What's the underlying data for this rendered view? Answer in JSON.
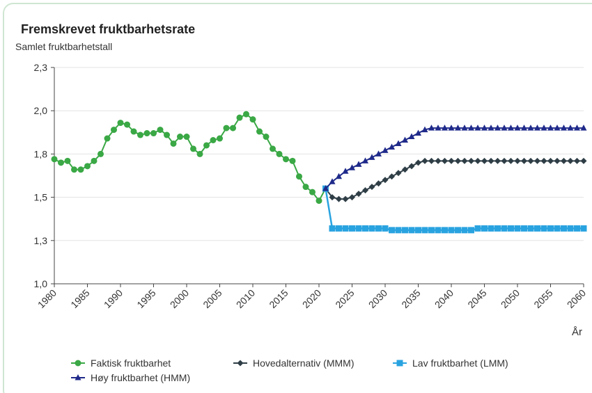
{
  "chart_data": {
    "type": "line",
    "title": "Fremskrevet fruktbarhetsrate",
    "subtitle": "Samlet fruktbarhetstall",
    "x_label": "År",
    "xlim": [
      1980,
      2060
    ],
    "xticks": [
      1980,
      1985,
      1990,
      1995,
      2000,
      2005,
      2010,
      2015,
      2020,
      2025,
      2030,
      2035,
      2040,
      2045,
      2050,
      2055,
      2060
    ],
    "ylim": [
      1.0,
      2.25
    ],
    "yticks": [
      {
        "value": 1.0,
        "label": "1,0"
      },
      {
        "value": 1.25,
        "label": "1,3"
      },
      {
        "value": 1.5,
        "label": "1,5"
      },
      {
        "value": 1.75,
        "label": "1,8"
      },
      {
        "value": 2.0,
        "label": "2,0"
      },
      {
        "value": 2.25,
        "label": "2,3"
      }
    ],
    "grid": true,
    "legend": "bottom",
    "series": [
      {
        "name": "Faktisk fruktbarhet",
        "color": "#3aa845",
        "marker": "circle",
        "x": [
          1980,
          1981,
          1982,
          1983,
          1984,
          1985,
          1986,
          1987,
          1988,
          1989,
          1990,
          1991,
          1992,
          1993,
          1994,
          1995,
          1996,
          1997,
          1998,
          1999,
          2000,
          2001,
          2002,
          2003,
          2004,
          2005,
          2006,
          2007,
          2008,
          2009,
          2010,
          2011,
          2012,
          2013,
          2014,
          2015,
          2016,
          2017,
          2018,
          2019,
          2020,
          2021
        ],
        "values": [
          1.72,
          1.7,
          1.71,
          1.66,
          1.66,
          1.68,
          1.71,
          1.75,
          1.84,
          1.89,
          1.93,
          1.92,
          1.88,
          1.86,
          1.87,
          1.87,
          1.89,
          1.86,
          1.81,
          1.85,
          1.85,
          1.78,
          1.75,
          1.8,
          1.83,
          1.84,
          1.9,
          1.9,
          1.96,
          1.98,
          1.95,
          1.88,
          1.85,
          1.78,
          1.75,
          1.72,
          1.71,
          1.62,
          1.56,
          1.53,
          1.48,
          1.55
        ]
      },
      {
        "name": "Hovedalternativ (MMM)",
        "color": "#2f3e46",
        "marker": "diamond",
        "x": [
          2021,
          2022,
          2023,
          2024,
          2025,
          2026,
          2027,
          2028,
          2029,
          2030,
          2031,
          2032,
          2033,
          2034,
          2035,
          2036,
          2037,
          2038,
          2039,
          2040,
          2041,
          2042,
          2043,
          2044,
          2045,
          2046,
          2047,
          2048,
          2049,
          2050,
          2051,
          2052,
          2053,
          2054,
          2055,
          2056,
          2057,
          2058,
          2059,
          2060
        ],
        "values": [
          1.55,
          1.5,
          1.49,
          1.49,
          1.5,
          1.52,
          1.54,
          1.56,
          1.58,
          1.6,
          1.62,
          1.64,
          1.66,
          1.68,
          1.7,
          1.71,
          1.71,
          1.71,
          1.71,
          1.71,
          1.71,
          1.71,
          1.71,
          1.71,
          1.71,
          1.71,
          1.71,
          1.71,
          1.71,
          1.71,
          1.71,
          1.71,
          1.71,
          1.71,
          1.71,
          1.71,
          1.71,
          1.71,
          1.71,
          1.71
        ]
      },
      {
        "name": "Lav fruktbarhet (LMM)",
        "color": "#29a3e0",
        "marker": "square",
        "x": [
          2021,
          2022,
          2023,
          2024,
          2025,
          2026,
          2027,
          2028,
          2029,
          2030,
          2031,
          2032,
          2033,
          2034,
          2035,
          2036,
          2037,
          2038,
          2039,
          2040,
          2041,
          2042,
          2043,
          2044,
          2045,
          2046,
          2047,
          2048,
          2049,
          2050,
          2051,
          2052,
          2053,
          2054,
          2055,
          2056,
          2057,
          2058,
          2059,
          2060
        ],
        "values": [
          1.55,
          1.32,
          1.32,
          1.32,
          1.32,
          1.32,
          1.32,
          1.32,
          1.32,
          1.32,
          1.31,
          1.31,
          1.31,
          1.31,
          1.31,
          1.31,
          1.31,
          1.31,
          1.31,
          1.31,
          1.31,
          1.31,
          1.31,
          1.32,
          1.32,
          1.32,
          1.32,
          1.32,
          1.32,
          1.32,
          1.32,
          1.32,
          1.32,
          1.32,
          1.32,
          1.32,
          1.32,
          1.32,
          1.32,
          1.32
        ]
      },
      {
        "name": "Høy fruktbarhet (HMM)",
        "color": "#1f2a8a",
        "marker": "triangle",
        "x": [
          2021,
          2022,
          2023,
          2024,
          2025,
          2026,
          2027,
          2028,
          2029,
          2030,
          2031,
          2032,
          2033,
          2034,
          2035,
          2036,
          2037,
          2038,
          2039,
          2040,
          2041,
          2042,
          2043,
          2044,
          2045,
          2046,
          2047,
          2048,
          2049,
          2050,
          2051,
          2052,
          2053,
          2054,
          2055,
          2056,
          2057,
          2058,
          2059,
          2060
        ],
        "values": [
          1.55,
          1.59,
          1.62,
          1.65,
          1.67,
          1.69,
          1.71,
          1.73,
          1.75,
          1.77,
          1.79,
          1.81,
          1.83,
          1.85,
          1.87,
          1.89,
          1.9,
          1.9,
          1.9,
          1.9,
          1.9,
          1.9,
          1.9,
          1.9,
          1.9,
          1.9,
          1.9,
          1.9,
          1.9,
          1.9,
          1.9,
          1.9,
          1.9,
          1.9,
          1.9,
          1.9,
          1.9,
          1.9,
          1.9,
          1.9
        ]
      }
    ]
  }
}
